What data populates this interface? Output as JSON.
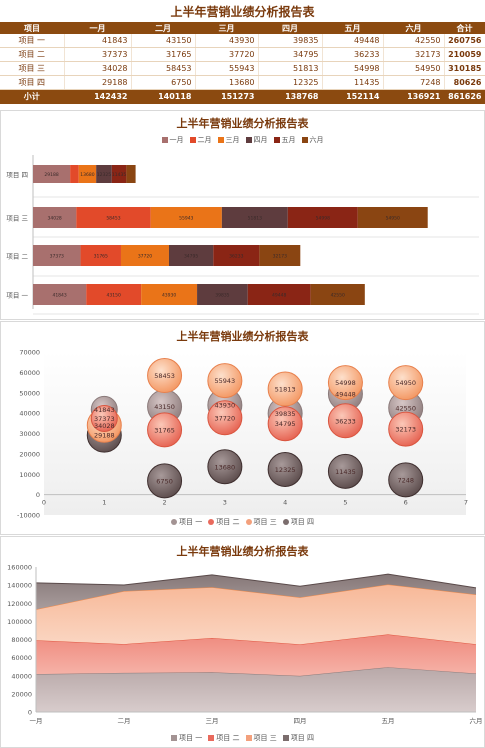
{
  "colors": {
    "header_bg": "#8b4a10",
    "title_text": "#7a3a0d",
    "months": [
      "#a8706e",
      "#e24a2a",
      "#ea7418",
      "#5e3c3e",
      "#8a2515",
      "#8a4512"
    ],
    "rows": [
      "#a39393",
      "#e96a5d",
      "#f3a07c",
      "#7b6d6d"
    ]
  },
  "table": {
    "title": "上半年营销业绩分析报告表",
    "headers": [
      "项目",
      "一月",
      "二月",
      "三月",
      "四月",
      "五月",
      "六月",
      "合计"
    ],
    "rows": [
      {
        "name": "项目 一",
        "values": [
          "41843",
          "43150",
          "43930",
          "39835",
          "49448",
          "42550"
        ],
        "total": "260756"
      },
      {
        "name": "项目 二",
        "values": [
          "37373",
          "31765",
          "37720",
          "34795",
          "36233",
          "32173"
        ],
        "total": "210059"
      },
      {
        "name": "项目 三",
        "values": [
          "34028",
          "58453",
          "55943",
          "51813",
          "54998",
          "54950"
        ],
        "total": "310185"
      },
      {
        "name": "项目 四",
        "values": [
          "29188",
          "6750",
          "13680",
          "12325",
          "11435",
          "7248"
        ],
        "total": "80626"
      }
    ],
    "subtotal": {
      "name": "小计",
      "values": [
        "142432",
        "140118",
        "151273",
        "138768",
        "152114",
        "136921"
      ],
      "total": "861626"
    }
  },
  "chart_data": [
    {
      "type": "bar",
      "orientation": "horizontal",
      "stacked": true,
      "title": "上半年营销业绩分析报告表",
      "categories": [
        "项目 四",
        "项目 三",
        "项目 二",
        "项目 一"
      ],
      "series": [
        {
          "name": "一月",
          "values": [
            29188,
            34028,
            37373,
            41843
          ]
        },
        {
          "name": "二月",
          "values": [
            6750,
            58453,
            31765,
            43150
          ]
        },
        {
          "name": "三月",
          "values": [
            13680,
            55943,
            37720,
            43930
          ]
        },
        {
          "name": "四月",
          "values": [
            12325,
            51813,
            34795,
            39835
          ]
        },
        {
          "name": "五月",
          "values": [
            11435,
            54998,
            36233,
            49448
          ]
        },
        {
          "name": "六月",
          "values": [
            7248,
            54950,
            32173,
            42550
          ]
        }
      ],
      "legend": "top"
    },
    {
      "type": "scatter",
      "subtype": "bubble",
      "title": "上半年营销业绩分析报告表",
      "x": [
        1,
        2,
        3,
        4,
        5,
        6
      ],
      "xlim": [
        0,
        7
      ],
      "ylim": [
        -10000,
        70000
      ],
      "yticks": [
        -10000,
        0,
        10000,
        20000,
        30000,
        40000,
        50000,
        60000,
        70000
      ],
      "xticks": [
        0,
        1,
        2,
        3,
        4,
        5,
        6,
        7
      ],
      "series": [
        {
          "name": "项目 一",
          "values": [
            41843,
            43150,
            43930,
            39835,
            49448,
            42550
          ]
        },
        {
          "name": "项目 二",
          "values": [
            37373,
            31765,
            37720,
            34795,
            36233,
            32173
          ]
        },
        {
          "name": "项目 三",
          "values": [
            34028,
            58453,
            55943,
            51813,
            54998,
            54950
          ]
        },
        {
          "name": "项目 四",
          "values": [
            29188,
            6750,
            13680,
            12325,
            11435,
            7248
          ]
        }
      ],
      "legend": "bottom"
    },
    {
      "type": "area",
      "stacked": true,
      "title": "上半年营销业绩分析报告表",
      "categories": [
        "一月",
        "二月",
        "三月",
        "四月",
        "五月",
        "六月"
      ],
      "ylim": [
        0,
        160000
      ],
      "yticks": [
        0,
        20000,
        40000,
        60000,
        80000,
        100000,
        120000,
        140000,
        160000
      ],
      "series": [
        {
          "name": "项目 一",
          "values": [
            41843,
            43150,
            43930,
            39835,
            49448,
            42550
          ]
        },
        {
          "name": "项目 二",
          "values": [
            37373,
            31765,
            37720,
            34795,
            36233,
            32173
          ]
        },
        {
          "name": "项目 三",
          "values": [
            34028,
            58453,
            55943,
            51813,
            54998,
            54950
          ]
        },
        {
          "name": "项目 四",
          "values": [
            29188,
            6750,
            13680,
            12325,
            11435,
            7248
          ]
        }
      ],
      "legend": "bottom"
    }
  ]
}
